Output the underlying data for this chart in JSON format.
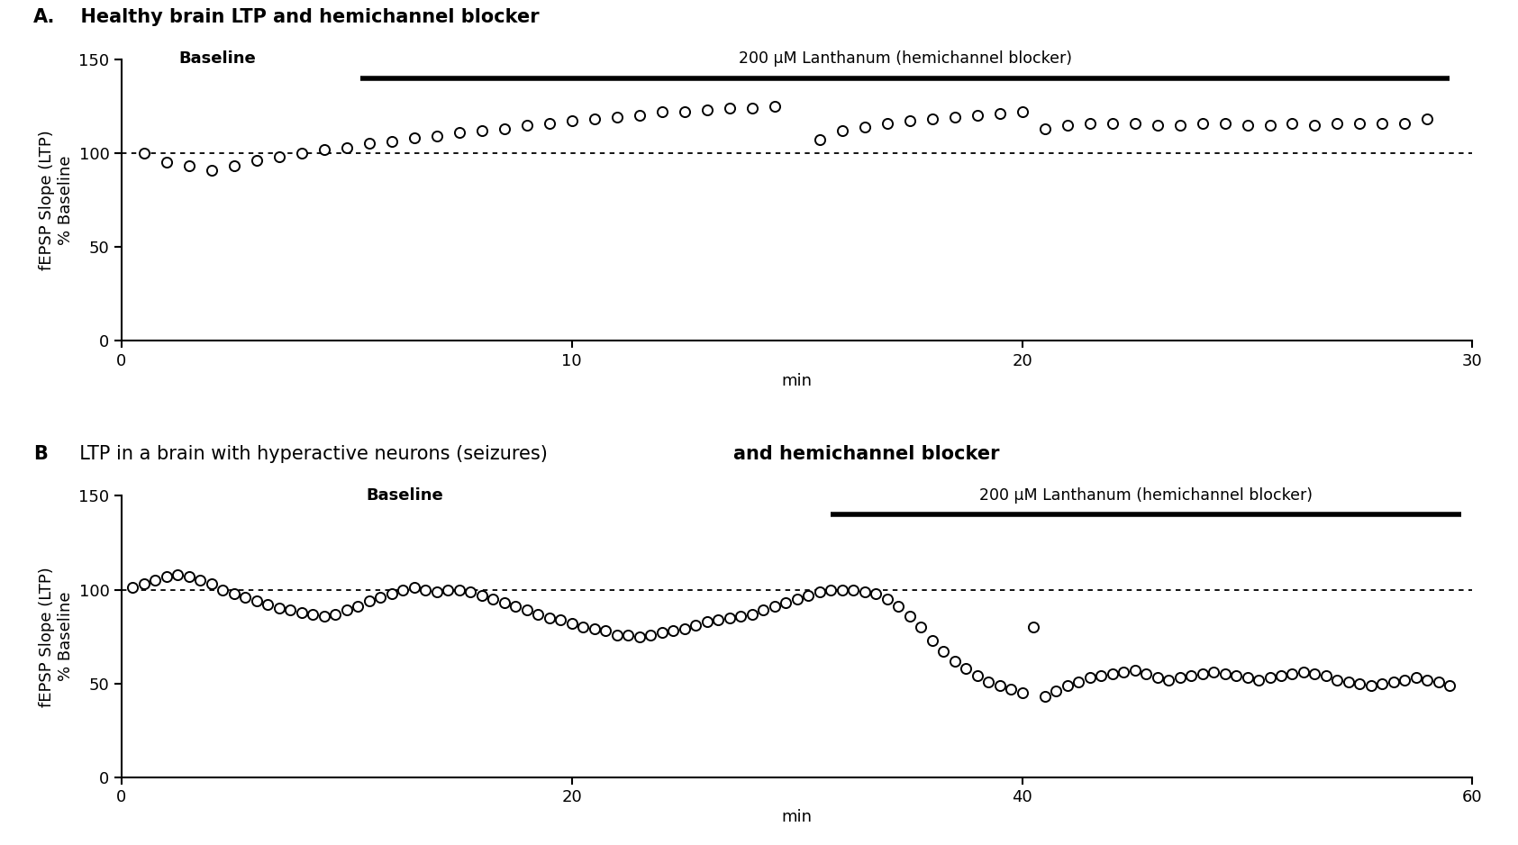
{
  "panel_A": {
    "ylabel": "fEPSP Slope (LTP)\n% Baseline",
    "xlabel": "min",
    "xlim": [
      0,
      30
    ],
    "ylim": [
      0,
      150
    ],
    "yticks": [
      0,
      50,
      100,
      150
    ],
    "xticks": [
      0,
      10,
      20,
      30
    ],
    "baseline_label": "Baseline",
    "drug_label": "200 μM Lanthanum (hemichannel blocker)",
    "drug_bar_x_start": 5.3,
    "drug_bar_x_end": 29.5,
    "dotted_line_y": 100,
    "title_A": "A.",
    "title_B": "  Healthy brain LTP and hemichannel blocker",
    "data_x": [
      0.5,
      1.0,
      1.5,
      2.0,
      2.5,
      3.0,
      3.5,
      4.0,
      4.5,
      5.0,
      5.5,
      6.0,
      6.5,
      7.0,
      7.5,
      8.0,
      8.5,
      9.0,
      9.5,
      10.0,
      10.5,
      11.0,
      11.5,
      12.0,
      12.5,
      13.0,
      13.5,
      14.0,
      14.5,
      15.5,
      16.0,
      16.5,
      17.0,
      17.5,
      18.0,
      18.5,
      19.0,
      19.5,
      20.0,
      20.5,
      21.0,
      21.5,
      22.0,
      22.5,
      23.0,
      23.5,
      24.0,
      24.5,
      25.0,
      25.5,
      26.0,
      26.5,
      27.0,
      27.5,
      28.0,
      28.5,
      29.0
    ],
    "data_y": [
      100,
      95,
      93,
      91,
      93,
      96,
      98,
      100,
      102,
      103,
      105,
      106,
      108,
      109,
      111,
      112,
      113,
      115,
      116,
      117,
      118,
      119,
      120,
      122,
      122,
      123,
      124,
      124,
      125,
      107,
      112,
      114,
      116,
      117,
      118,
      119,
      120,
      121,
      122,
      113,
      115,
      116,
      116,
      116,
      115,
      115,
      116,
      116,
      115,
      115,
      116,
      115,
      116,
      116,
      116,
      116,
      118
    ]
  },
  "panel_B": {
    "ylabel": "fEPSP Slope (LTP)\n% Baseline",
    "xlabel": "min",
    "xlim": [
      0,
      60
    ],
    "ylim": [
      0,
      150
    ],
    "yticks": [
      0,
      50,
      100,
      150
    ],
    "xticks": [
      0,
      20,
      40,
      60
    ],
    "baseline_label": "Baseline",
    "drug_label": "200 μM Lanthanum (hemichannel blocker)",
    "drug_bar_x_start": 31.5,
    "drug_bar_x_end": 59.5,
    "dotted_line_y": 100,
    "title_A": "B",
    "title_B": "  LTP in a brain with hyperactive neurons (seizures) ",
    "title_C": "and hemichannel blocker",
    "data_x": [
      0.5,
      1.0,
      1.5,
      2.0,
      2.5,
      3.0,
      3.5,
      4.0,
      4.5,
      5.0,
      5.5,
      6.0,
      6.5,
      7.0,
      7.5,
      8.0,
      8.5,
      9.0,
      9.5,
      10.0,
      10.5,
      11.0,
      11.5,
      12.0,
      12.5,
      13.0,
      13.5,
      14.0,
      14.5,
      15.0,
      15.5,
      16.0,
      16.5,
      17.0,
      17.5,
      18.0,
      18.5,
      19.0,
      19.5,
      20.0,
      20.5,
      21.0,
      21.5,
      22.0,
      22.5,
      23.0,
      23.5,
      24.0,
      24.5,
      25.0,
      25.5,
      26.0,
      26.5,
      27.0,
      27.5,
      28.0,
      28.5,
      29.0,
      29.5,
      30.0,
      30.5,
      31.0,
      31.5,
      32.0,
      32.5,
      33.0,
      33.5,
      34.0,
      34.5,
      35.0,
      35.5,
      36.0,
      36.5,
      37.0,
      37.5,
      38.0,
      38.5,
      39.0,
      39.5,
      40.0,
      40.5,
      41.0,
      41.5,
      42.0,
      42.5,
      43.0,
      43.5,
      44.0,
      44.5,
      45.0,
      45.5,
      46.0,
      46.5,
      47.0,
      47.5,
      48.0,
      48.5,
      49.0,
      49.5,
      50.0,
      50.5,
      51.0,
      51.5,
      52.0,
      52.5,
      53.0,
      53.5,
      54.0,
      54.5,
      55.0,
      55.5,
      56.0,
      56.5,
      57.0,
      57.5,
      58.0,
      58.5,
      59.0
    ],
    "data_y": [
      101,
      103,
      105,
      107,
      108,
      107,
      105,
      103,
      100,
      98,
      96,
      94,
      92,
      90,
      89,
      88,
      87,
      86,
      87,
      89,
      91,
      94,
      96,
      98,
      100,
      101,
      100,
      99,
      100,
      100,
      99,
      97,
      95,
      93,
      91,
      89,
      87,
      85,
      84,
      82,
      80,
      79,
      78,
      76,
      76,
      75,
      76,
      77,
      78,
      79,
      81,
      83,
      84,
      85,
      86,
      87,
      89,
      91,
      93,
      95,
      97,
      99,
      100,
      100,
      100,
      99,
      98,
      95,
      91,
      86,
      80,
      73,
      67,
      62,
      58,
      54,
      51,
      49,
      47,
      45,
      80,
      43,
      46,
      49,
      51,
      53,
      54,
      55,
      56,
      57,
      55,
      53,
      52,
      53,
      54,
      55,
      56,
      55,
      54,
      53,
      52,
      53,
      54,
      55,
      56,
      55,
      54,
      52,
      51,
      50,
      49,
      50,
      51,
      52,
      53,
      52,
      51,
      49
    ]
  },
  "background_color": "#ffffff",
  "marker_size": 8,
  "marker_linewidth": 1.4,
  "line_color": "black",
  "title_fontsize": 15,
  "label_fontsize": 13,
  "tick_fontsize": 13
}
